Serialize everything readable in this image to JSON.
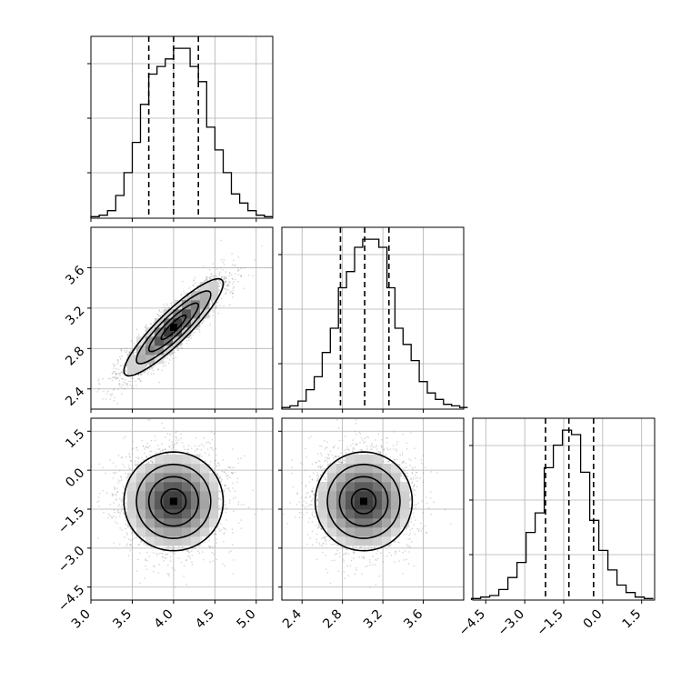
{
  "chart_data": {
    "type": "corner",
    "title": "",
    "grid": true,
    "params": [
      {
        "name": "p0",
        "label": "",
        "mean": 4.0,
        "sd": 0.3,
        "range": [
          3.0,
          5.2
        ],
        "ticks": [
          "3.0",
          "3.5",
          "4.0",
          "4.5",
          "5.0"
        ],
        "tick_values": [
          3.0,
          3.5,
          4.0,
          4.5,
          5.0
        ],
        "quantiles": [
          3.7,
          4.0,
          4.3
        ]
      },
      {
        "name": "p1",
        "label": "",
        "mean": 3.01,
        "sd": 0.24,
        "range": [
          2.2,
          4.0
        ],
        "ticks": [
          "2.4",
          "2.8",
          "3.2",
          "3.6"
        ],
        "tick_values": [
          2.4,
          2.8,
          3.2,
          3.6
        ],
        "quantiles": [
          2.78,
          3.02,
          3.26
        ]
      },
      {
        "name": "p2",
        "label": "",
        "mean": -1.2,
        "sd": 0.95,
        "range": [
          -5.0,
          2.0
        ],
        "ticks": [
          "−4.5",
          "−3.0",
          "−1.5",
          "0.0",
          "1.5"
        ],
        "tick_values": [
          -4.5,
          -3.0,
          -1.5,
          0.0,
          1.5
        ],
        "quantiles": [
          -2.2,
          -1.3,
          -0.35
        ]
      }
    ],
    "correlations": {
      "p0_p1": 0.9,
      "p0_p2": 0.0,
      "p1_p2": 0.0
    },
    "histograms": {
      "p0": {
        "bin_edges": [
          3.0,
          3.1,
          3.2,
          3.3,
          3.4,
          3.5,
          3.6,
          3.7,
          3.8,
          3.9,
          4.0,
          4.1,
          4.2,
          4.3,
          4.4,
          4.5,
          4.6,
          4.7,
          4.8,
          4.9,
          5.0,
          5.1,
          5.2
        ],
        "counts": [
          0.01,
          0.02,
          0.05,
          0.15,
          0.3,
          0.5,
          0.75,
          0.95,
          1.0,
          1.05,
          1.12,
          1.12,
          1.0,
          0.9,
          0.6,
          0.45,
          0.3,
          0.16,
          0.1,
          0.05,
          0.02,
          0.01
        ]
      },
      "p1": {
        "bin_edges": [
          2.2,
          2.28,
          2.36,
          2.44,
          2.52,
          2.6,
          2.68,
          2.76,
          2.84,
          2.92,
          3.0,
          3.08,
          3.16,
          3.24,
          3.32,
          3.4,
          3.48,
          3.56,
          3.64,
          3.72,
          3.8,
          3.88,
          3.96,
          4.04
        ],
        "counts": [
          0.01,
          0.02,
          0.05,
          0.12,
          0.2,
          0.35,
          0.5,
          0.75,
          0.85,
          1.0,
          1.05,
          1.05,
          1.0,
          0.75,
          0.5,
          0.4,
          0.3,
          0.17,
          0.1,
          0.06,
          0.03,
          0.02,
          0.01
        ]
      },
      "p2": {
        "bin_edges": [
          -5.05,
          -4.7,
          -4.35,
          -4.0,
          -3.65,
          -3.3,
          -2.95,
          -2.6,
          -2.25,
          -1.9,
          -1.55,
          -1.2,
          -0.85,
          -0.5,
          -0.15,
          0.2,
          0.55,
          0.9,
          1.25,
          1.6,
          1.95
        ],
        "counts": [
          0.01,
          0.02,
          0.03,
          0.07,
          0.15,
          0.25,
          0.45,
          0.58,
          0.88,
          1.03,
          1.13,
          1.1,
          0.85,
          0.53,
          0.33,
          0.2,
          0.1,
          0.05,
          0.02,
          0.01
        ]
      }
    },
    "contour_levels": [
      0.118,
      0.393,
      0.675,
      0.865
    ],
    "histogram_color": "#000000",
    "quantile_line_style": "dashed",
    "sample_point_color": "#888888"
  }
}
